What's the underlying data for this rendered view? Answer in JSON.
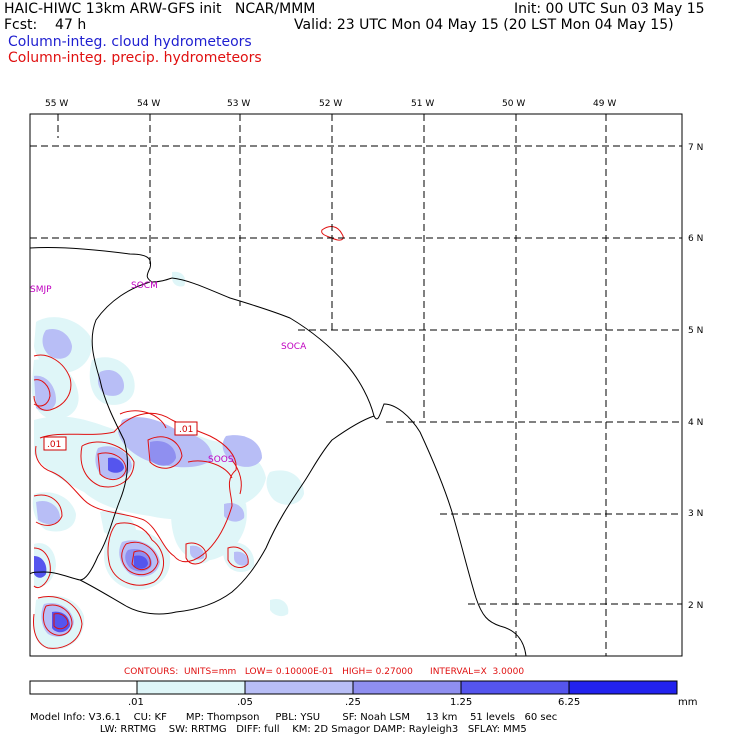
{
  "header": {
    "line1_left": "HAIC-HIWC 13km ARW-GFS init   NCAR/MMM",
    "line1_right": "Init: 00 UTC Sun 03 May 15",
    "line2_left": "Fcst:    47 h",
    "line2_right": "Valid: 23 UTC Mon 04 May 15 (20 LST Mon 04 May 15)",
    "field_cloud": "Column-integ. cloud hydrometeors",
    "field_precip": "Column-integ. precip. hydrometeors"
  },
  "map": {
    "lon_labels": [
      "55 W",
      "54 W",
      "53 W",
      "52 W",
      "51 W",
      "50 W",
      "49 W"
    ],
    "lat_labels": [
      "7 N",
      "6 N",
      "5 N",
      "4 N",
      "3 N",
      "2 N"
    ],
    "stations": [
      "SMJP",
      "SOCM",
      "SOCA",
      "SOOS"
    ],
    "contour_labels": [
      ".01",
      ".01"
    ]
  },
  "contours_line": "CONTOURS:  UNITS=mm   LOW= 0.10000E-01   HIGH= 0.27000      INTERVAL=X  3.0000",
  "colorbar": {
    "labels": [
      ".01",
      ".05",
      ".25",
      "1.25",
      "6.25",
      "mm"
    ],
    "colors": [
      "#ffffff",
      "#dff6f8",
      "#b8bef6",
      "#8f8ff0",
      "#5555ee",
      "#2222ee"
    ]
  },
  "footer": {
    "line1": "Model Info: V3.6.1    CU: KF      MP: Thompson     PBL: YSU       SF: Noah LSM     13 km    51 levels   60 sec",
    "line2": "                      LW: RRTMG    SW: RRTMG   DIFF: full    KM: 2D Smagor DAMP: Rayleigh3   SFLAY: MM5"
  }
}
